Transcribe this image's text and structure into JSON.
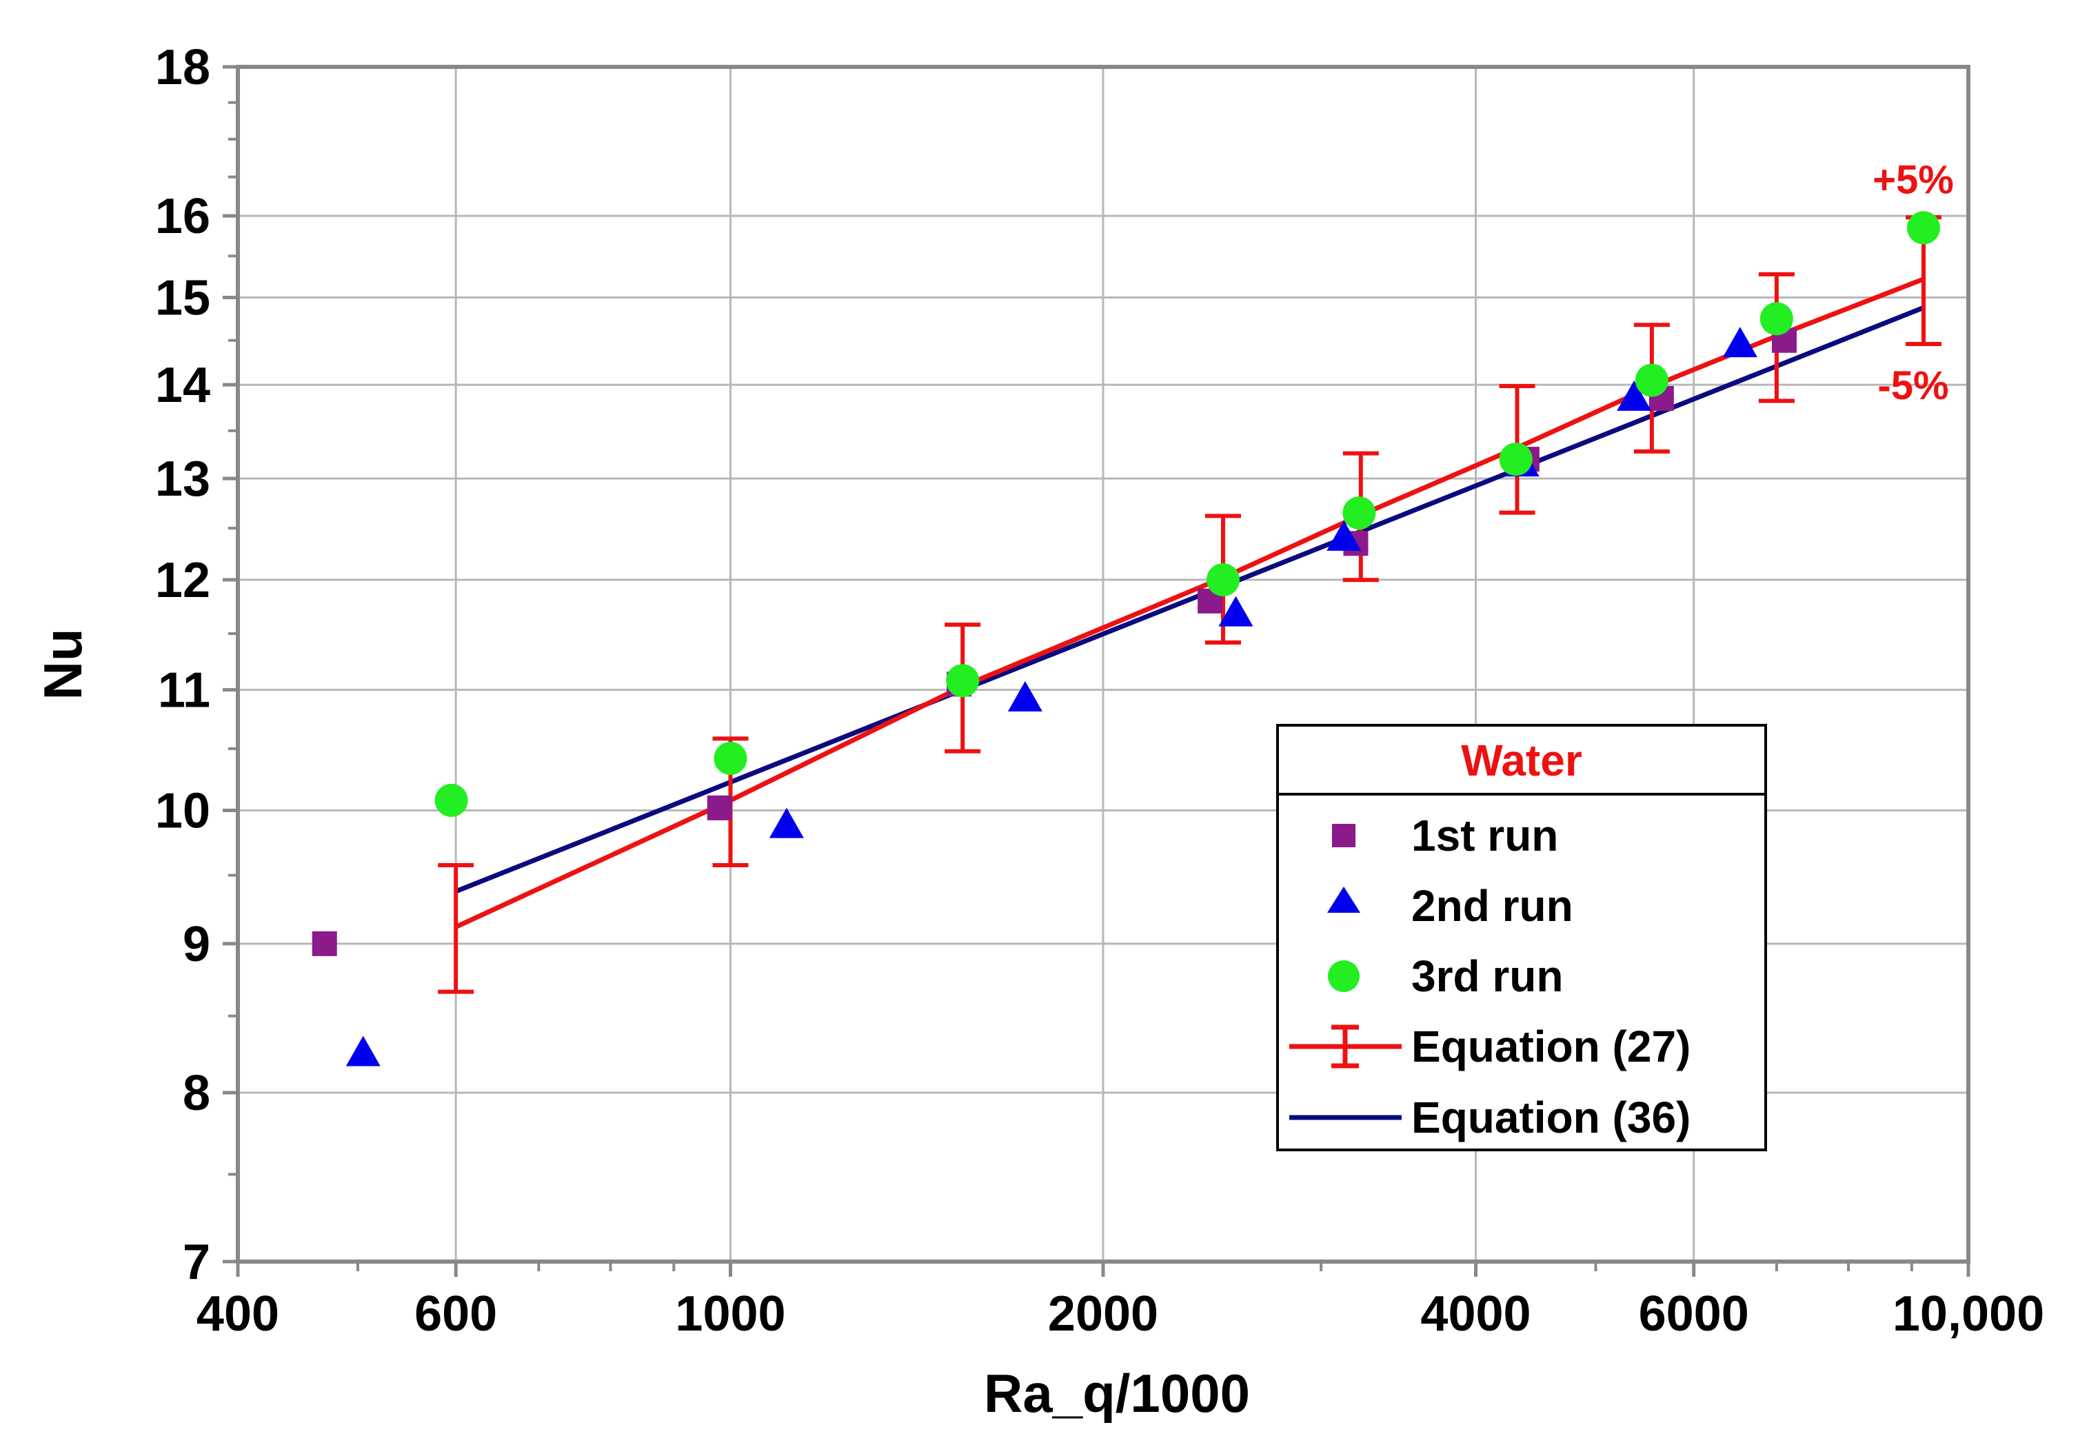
{
  "chart_data": {
    "type": "scatter",
    "title": "",
    "xlabel": "Ra_q/1000",
    "ylabel": "Nu",
    "xscale": "log",
    "yscale": "log",
    "xlim": [
      400,
      10000
    ],
    "ylim": [
      7,
      18
    ],
    "grid": true,
    "x_ticks": [
      400,
      600,
      1000,
      2000,
      4000,
      6000,
      10000
    ],
    "x_tick_labels": [
      "400",
      "600",
      "1000",
      "2000",
      "4000",
      "6000",
      "10,000"
    ],
    "y_ticks": [
      7,
      8,
      9,
      10,
      11,
      12,
      13,
      14,
      15,
      16,
      18
    ],
    "y_tick_labels": [
      "7",
      "8",
      "9",
      "10",
      "11",
      "12",
      "13",
      "14",
      "15",
      "16",
      "18"
    ],
    "legend": {
      "title": "Water",
      "position": "bottom-right",
      "entries": [
        "1st run",
        "2nd run",
        "3rd run",
        "Equation (27)",
        "Equation (36)"
      ]
    },
    "series": [
      {
        "name": "1st run",
        "marker": "square",
        "color": "#8B1A8B",
        "points": [
          [
            470,
            9.0
          ],
          [
            980,
            10.02
          ],
          [
            1530,
            11.05
          ],
          [
            2440,
            11.8
          ],
          [
            3200,
            12.35
          ],
          [
            4400,
            13.2
          ],
          [
            5650,
            13.85
          ],
          [
            7100,
            14.5
          ]
        ]
      },
      {
        "name": "2nd run",
        "marker": "triangle",
        "color": "#0000EE",
        "points": [
          [
            505,
            8.25
          ],
          [
            1110,
            9.88
          ],
          [
            1730,
            10.92
          ],
          [
            2560,
            11.68
          ],
          [
            3130,
            12.4
          ],
          [
            4360,
            13.15
          ],
          [
            5370,
            13.85
          ],
          [
            6540,
            14.45
          ]
        ]
      },
      {
        "name": "3rd run",
        "marker": "circle",
        "color": "#22EE22",
        "points": [
          [
            595,
            10.08
          ],
          [
            1000,
            10.42
          ],
          [
            1540,
            11.08
          ],
          [
            2500,
            12.0
          ],
          [
            3220,
            12.65
          ],
          [
            4310,
            13.2
          ],
          [
            5550,
            14.05
          ],
          [
            7000,
            14.75
          ],
          [
            9200,
            15.85
          ]
        ]
      },
      {
        "name": "Equation (27)",
        "type": "line_with_error_bars",
        "color": "#EE1111",
        "error_percent": 5,
        "points": [
          [
            600,
            9.12
          ],
          [
            1000,
            10.08
          ],
          [
            1540,
            11.03
          ],
          [
            2500,
            12.02
          ],
          [
            3230,
            12.63
          ],
          [
            4320,
            13.32
          ],
          [
            5550,
            13.98
          ],
          [
            7000,
            14.55
          ],
          [
            9200,
            15.22
          ]
        ]
      },
      {
        "name": "Equation (36)",
        "type": "line",
        "color": "#0A0A80",
        "points": [
          [
            600,
            9.38
          ],
          [
            9200,
            14.88
          ]
        ]
      }
    ],
    "annotations": [
      {
        "text": "+5%",
        "color": "#EE1111"
      },
      {
        "text": "-5%",
        "color": "#EE1111"
      }
    ]
  }
}
